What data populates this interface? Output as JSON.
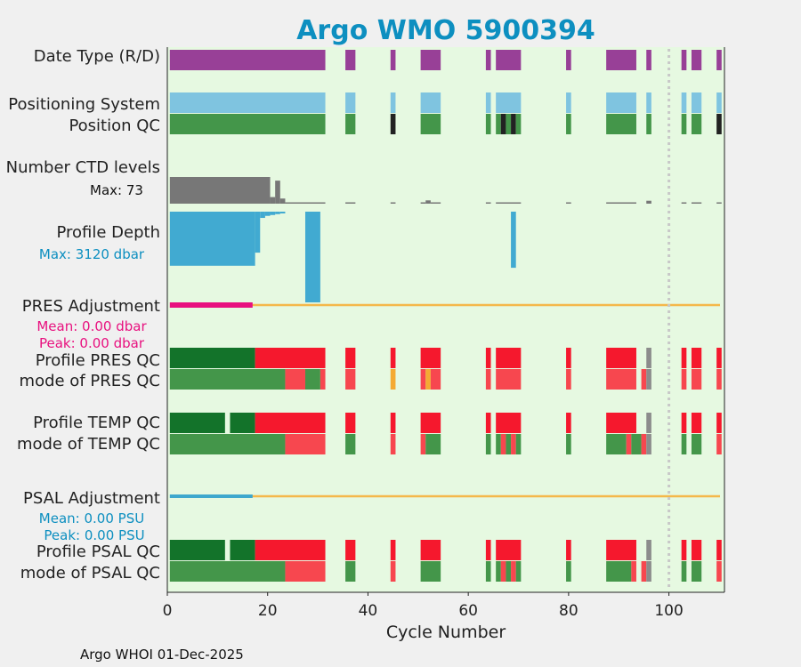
{
  "chart_data": {
    "type": "bar",
    "title": "Argo WMO 5900394",
    "xlabel": "Cycle Number",
    "xlim": [
      0,
      111
    ],
    "xticks": [
      "0",
      "20",
      "40",
      "60",
      "80",
      "100"
    ],
    "xtick_values": [
      0,
      20,
      40,
      60,
      80,
      100
    ],
    "footer": "Argo WHOI 01-Dec-2025",
    "colors": {
      "background": "#e6f9e1",
      "title": "#0d8fc0",
      "date_type": "#984097",
      "positioning": "#7fc4e0",
      "qc_good": "#44964a",
      "qc_dark_good": "#13732a",
      "qc_bad": "#f5182d",
      "qc_bad_light": "#f7474f",
      "qc_prob": "#f4aa33",
      "qc_black": "#222222",
      "qc_gray": "#8c8c8c",
      "ctd": "#777777",
      "depth": "#41aad1",
      "adj_line": "#f4b84a",
      "pres_adj": "#e8117f",
      "psal_adj": "#3ea8cd",
      "dotted": "#c8c8c8"
    },
    "reference_cycle": 100,
    "row_labels": {
      "date_type": "Date Type (R/D)",
      "positioning": "Positioning System",
      "position_qc": "Position QC",
      "ctd_levels": "Number CTD levels",
      "ctd_max": "Max: 73",
      "profile_depth": "Profile Depth",
      "depth_max": "Max: 3120 dbar",
      "pres_adj": "PRES Adjustment",
      "pres_mean": "Mean: 0.00 dbar",
      "pres_peak": "Peak: 0.00 dbar",
      "profile_pres_qc": "Profile PRES QC",
      "mode_pres_qc": "mode of PRES QC",
      "profile_temp_qc": "Profile TEMP QC",
      "mode_temp_qc": "mode of TEMP QC",
      "psal_adj": "PSAL Adjustment",
      "psal_mean": "Mean: 0.00 PSU",
      "psal_peak": "Peak: 0.00 PSU",
      "profile_psal_qc": "Profile PSAL QC",
      "mode_psal_qc": "mode of PSAL QC"
    },
    "ctd_max_levels": 73,
    "depth_max_dbar": 3120,
    "rows": {
      "date_type": [
        {
          "start": 0.5,
          "end": 31.5,
          "c": "date_type"
        },
        {
          "start": 35.5,
          "end": 37.5,
          "c": "date_type"
        },
        {
          "start": 44.5,
          "end": 45.5,
          "c": "date_type"
        },
        {
          "start": 50.5,
          "end": 54.5,
          "c": "date_type"
        },
        {
          "start": 63.5,
          "end": 64.5,
          "c": "date_type"
        },
        {
          "start": 65.5,
          "end": 70.5,
          "c": "date_type"
        },
        {
          "start": 79.5,
          "end": 80.5,
          "c": "date_type"
        },
        {
          "start": 87.5,
          "end": 93.5,
          "c": "date_type"
        },
        {
          "start": 95.5,
          "end": 96.5,
          "c": "date_type"
        },
        {
          "start": 102.5,
          "end": 103.5,
          "c": "date_type"
        },
        {
          "start": 104.5,
          "end": 106.5,
          "c": "date_type"
        },
        {
          "start": 109.5,
          "end": 110.5,
          "c": "date_type"
        }
      ],
      "positioning": [
        {
          "start": 0.5,
          "end": 31.5,
          "c": "positioning"
        },
        {
          "start": 35.5,
          "end": 37.5,
          "c": "positioning"
        },
        {
          "start": 44.5,
          "end": 45.5,
          "c": "positioning"
        },
        {
          "start": 50.5,
          "end": 54.5,
          "c": "positioning"
        },
        {
          "start": 63.5,
          "end": 64.5,
          "c": "positioning"
        },
        {
          "start": 65.5,
          "end": 70.5,
          "c": "positioning"
        },
        {
          "start": 79.5,
          "end": 80.5,
          "c": "positioning"
        },
        {
          "start": 87.5,
          "end": 93.5,
          "c": "positioning"
        },
        {
          "start": 95.5,
          "end": 96.5,
          "c": "positioning"
        },
        {
          "start": 102.5,
          "end": 103.5,
          "c": "positioning"
        },
        {
          "start": 104.5,
          "end": 106.5,
          "c": "positioning"
        },
        {
          "start": 109.5,
          "end": 110.5,
          "c": "positioning"
        }
      ],
      "position_qc": [
        {
          "start": 0.5,
          "end": 31.5,
          "c": "qc_good"
        },
        {
          "start": 35.5,
          "end": 37.5,
          "c": "qc_good"
        },
        {
          "start": 44.5,
          "end": 45.5,
          "c": "qc_black"
        },
        {
          "start": 50.5,
          "end": 54.5,
          "c": "qc_good"
        },
        {
          "start": 63.5,
          "end": 64.5,
          "c": "qc_good"
        },
        {
          "start": 65.5,
          "end": 66.5,
          "c": "qc_good"
        },
        {
          "start": 66.5,
          "end": 67.5,
          "c": "qc_black"
        },
        {
          "start": 67.5,
          "end": 68.5,
          "c": "qc_good"
        },
        {
          "start": 68.5,
          "end": 69.5,
          "c": "qc_black"
        },
        {
          "start": 69.5,
          "end": 70.5,
          "c": "qc_good"
        },
        {
          "start": 79.5,
          "end": 80.5,
          "c": "qc_good"
        },
        {
          "start": 87.5,
          "end": 93.5,
          "c": "qc_good"
        },
        {
          "start": 95.5,
          "end": 96.5,
          "c": "qc_good"
        },
        {
          "start": 102.5,
          "end": 103.5,
          "c": "qc_good"
        },
        {
          "start": 104.5,
          "end": 106.5,
          "c": "qc_good"
        },
        {
          "start": 109.5,
          "end": 110.5,
          "c": "qc_black"
        }
      ],
      "ctd_levels": [
        {
          "start": 0.5,
          "end": 20.5,
          "v": 73
        },
        {
          "start": 20.5,
          "end": 21.5,
          "v": 18
        },
        {
          "start": 21.5,
          "end": 22.5,
          "v": 63
        },
        {
          "start": 22.5,
          "end": 23.5,
          "v": 14
        },
        {
          "start": 23.5,
          "end": 31.5,
          "v": 3
        },
        {
          "start": 35.5,
          "end": 37.5,
          "v": 3
        },
        {
          "start": 44.5,
          "end": 45.5,
          "v": 3
        },
        {
          "start": 50.5,
          "end": 51.5,
          "v": 3
        },
        {
          "start": 51.5,
          "end": 52.5,
          "v": 9
        },
        {
          "start": 52.5,
          "end": 54.5,
          "v": 3
        },
        {
          "start": 63.5,
          "end": 64.5,
          "v": 3
        },
        {
          "start": 65.5,
          "end": 70.5,
          "v": 3
        },
        {
          "start": 79.5,
          "end": 80.5,
          "v": 3
        },
        {
          "start": 87.5,
          "end": 93.5,
          "v": 3
        },
        {
          "start": 95.5,
          "end": 96.5,
          "v": 8
        },
        {
          "start": 102.5,
          "end": 103.5,
          "v": 3
        },
        {
          "start": 104.5,
          "end": 106.5,
          "v": 3
        },
        {
          "start": 109.5,
          "end": 110.5,
          "v": 3
        }
      ],
      "profile_depth": [
        {
          "start": 0.5,
          "end": 17.5,
          "v": 1860
        },
        {
          "start": 17.5,
          "end": 18.5,
          "v": 1410
        },
        {
          "start": 18.5,
          "end": 19.5,
          "v": 215
        },
        {
          "start": 19.5,
          "end": 20.5,
          "v": 145
        },
        {
          "start": 20.5,
          "end": 21.5,
          "v": 115
        },
        {
          "start": 21.5,
          "end": 22.5,
          "v": 85
        },
        {
          "start": 22.5,
          "end": 23.5,
          "v": 40
        },
        {
          "start": 27.5,
          "end": 30.5,
          "v": 3120
        },
        {
          "start": 68.5,
          "end": 69.5,
          "v": 1930
        }
      ],
      "pres_adj": [
        {
          "start": 0.5,
          "end": 17.0,
          "c": "pres_adj"
        }
      ],
      "profile_pres_qc": [
        {
          "start": 0.5,
          "end": 17.5,
          "c": "qc_dark_good"
        },
        {
          "start": 17.5,
          "end": 31.5,
          "c": "qc_bad"
        },
        {
          "start": 35.5,
          "end": 37.5,
          "c": "qc_bad"
        },
        {
          "start": 44.5,
          "end": 45.5,
          "c": "qc_bad"
        },
        {
          "start": 50.5,
          "end": 54.5,
          "c": "qc_bad"
        },
        {
          "start": 63.5,
          "end": 64.5,
          "c": "qc_bad"
        },
        {
          "start": 65.5,
          "end": 70.5,
          "c": "qc_bad"
        },
        {
          "start": 79.5,
          "end": 80.5,
          "c": "qc_bad"
        },
        {
          "start": 87.5,
          "end": 93.5,
          "c": "qc_bad"
        },
        {
          "start": 95.5,
          "end": 96.5,
          "c": "qc_gray"
        },
        {
          "start": 102.5,
          "end": 103.5,
          "c": "qc_bad"
        },
        {
          "start": 104.5,
          "end": 106.5,
          "c": "qc_bad"
        },
        {
          "start": 109.5,
          "end": 110.5,
          "c": "qc_bad"
        }
      ],
      "mode_pres_qc": [
        {
          "start": 0.5,
          "end": 23.5,
          "c": "qc_good"
        },
        {
          "start": 23.5,
          "end": 27.5,
          "c": "qc_bad_light"
        },
        {
          "start": 27.5,
          "end": 30.5,
          "c": "qc_good"
        },
        {
          "start": 30.5,
          "end": 31.5,
          "c": "qc_bad_light"
        },
        {
          "start": 35.5,
          "end": 37.5,
          "c": "qc_bad_light"
        },
        {
          "start": 44.5,
          "end": 45.5,
          "c": "qc_prob"
        },
        {
          "start": 50.5,
          "end": 51.5,
          "c": "qc_bad_light"
        },
        {
          "start": 51.5,
          "end": 52.5,
          "c": "qc_prob"
        },
        {
          "start": 52.5,
          "end": 54.5,
          "c": "qc_bad_light"
        },
        {
          "start": 63.5,
          "end": 64.5,
          "c": "qc_bad_light"
        },
        {
          "start": 65.5,
          "end": 70.5,
          "c": "qc_bad_light"
        },
        {
          "start": 79.5,
          "end": 80.5,
          "c": "qc_bad_light"
        },
        {
          "start": 87.5,
          "end": 93.5,
          "c": "qc_bad_light"
        },
        {
          "start": 94.5,
          "end": 95.5,
          "c": "qc_bad_light"
        },
        {
          "start": 95.5,
          "end": 96.5,
          "c": "qc_gray"
        },
        {
          "start": 102.5,
          "end": 103.5,
          "c": "qc_bad_light"
        },
        {
          "start": 104.5,
          "end": 106.5,
          "c": "qc_bad_light"
        },
        {
          "start": 109.5,
          "end": 110.5,
          "c": "qc_bad_light"
        }
      ],
      "profile_temp_qc": [
        {
          "start": 0.5,
          "end": 11.5,
          "c": "qc_dark_good"
        },
        {
          "start": 12.5,
          "end": 17.5,
          "c": "qc_dark_good"
        },
        {
          "start": 17.5,
          "end": 31.5,
          "c": "qc_bad"
        },
        {
          "start": 35.5,
          "end": 37.5,
          "c": "qc_bad"
        },
        {
          "start": 44.5,
          "end": 45.5,
          "c": "qc_bad"
        },
        {
          "start": 50.5,
          "end": 54.5,
          "c": "qc_bad"
        },
        {
          "start": 63.5,
          "end": 64.5,
          "c": "qc_bad"
        },
        {
          "start": 65.5,
          "end": 70.5,
          "c": "qc_bad"
        },
        {
          "start": 79.5,
          "end": 80.5,
          "c": "qc_bad"
        },
        {
          "start": 87.5,
          "end": 93.5,
          "c": "qc_bad"
        },
        {
          "start": 95.5,
          "end": 96.5,
          "c": "qc_gray"
        },
        {
          "start": 102.5,
          "end": 103.5,
          "c": "qc_bad"
        },
        {
          "start": 104.5,
          "end": 106.5,
          "c": "qc_bad"
        },
        {
          "start": 109.5,
          "end": 110.5,
          "c": "qc_bad"
        }
      ],
      "mode_temp_qc": [
        {
          "start": 0.5,
          "end": 23.5,
          "c": "qc_good"
        },
        {
          "start": 23.5,
          "end": 31.5,
          "c": "qc_bad_light"
        },
        {
          "start": 35.5,
          "end": 37.5,
          "c": "qc_good"
        },
        {
          "start": 44.5,
          "end": 45.5,
          "c": "qc_bad_light"
        },
        {
          "start": 50.5,
          "end": 51.5,
          "c": "qc_bad_light"
        },
        {
          "start": 51.5,
          "end": 54.5,
          "c": "qc_good"
        },
        {
          "start": 63.5,
          "end": 64.5,
          "c": "qc_good"
        },
        {
          "start": 65.5,
          "end": 66.5,
          "c": "qc_good"
        },
        {
          "start": 66.5,
          "end": 67.5,
          "c": "qc_bad_light"
        },
        {
          "start": 67.5,
          "end": 68.5,
          "c": "qc_good"
        },
        {
          "start": 68.5,
          "end": 69.5,
          "c": "qc_bad_light"
        },
        {
          "start": 69.5,
          "end": 70.5,
          "c": "qc_good"
        },
        {
          "start": 79.5,
          "end": 80.5,
          "c": "qc_good"
        },
        {
          "start": 87.5,
          "end": 91.5,
          "c": "qc_good"
        },
        {
          "start": 91.5,
          "end": 92.5,
          "c": "qc_bad_light"
        },
        {
          "start": 92.5,
          "end": 94.5,
          "c": "qc_good"
        },
        {
          "start": 94.5,
          "end": 95.5,
          "c": "qc_bad_light"
        },
        {
          "start": 95.5,
          "end": 96.5,
          "c": "qc_gray"
        },
        {
          "start": 102.5,
          "end": 103.5,
          "c": "qc_good"
        },
        {
          "start": 104.5,
          "end": 106.5,
          "c": "qc_good"
        },
        {
          "start": 109.5,
          "end": 110.5,
          "c": "qc_bad_light"
        }
      ],
      "psal_adj": [
        {
          "start": 0.5,
          "end": 17.0,
          "c": "psal_adj"
        }
      ],
      "profile_psal_qc": [
        {
          "start": 0.5,
          "end": 11.5,
          "c": "qc_dark_good"
        },
        {
          "start": 12.5,
          "end": 17.5,
          "c": "qc_dark_good"
        },
        {
          "start": 17.5,
          "end": 31.5,
          "c": "qc_bad"
        },
        {
          "start": 35.5,
          "end": 37.5,
          "c": "qc_bad"
        },
        {
          "start": 44.5,
          "end": 45.5,
          "c": "qc_bad"
        },
        {
          "start": 50.5,
          "end": 54.5,
          "c": "qc_bad"
        },
        {
          "start": 63.5,
          "end": 64.5,
          "c": "qc_bad"
        },
        {
          "start": 65.5,
          "end": 70.5,
          "c": "qc_bad"
        },
        {
          "start": 79.5,
          "end": 80.5,
          "c": "qc_bad"
        },
        {
          "start": 87.5,
          "end": 93.5,
          "c": "qc_bad"
        },
        {
          "start": 95.5,
          "end": 96.5,
          "c": "qc_gray"
        },
        {
          "start": 102.5,
          "end": 103.5,
          "c": "qc_bad"
        },
        {
          "start": 104.5,
          "end": 106.5,
          "c": "qc_bad"
        },
        {
          "start": 109.5,
          "end": 110.5,
          "c": "qc_bad"
        }
      ],
      "mode_psal_qc": [
        {
          "start": 0.5,
          "end": 23.5,
          "c": "qc_good"
        },
        {
          "start": 23.5,
          "end": 31.5,
          "c": "qc_bad_light"
        },
        {
          "start": 35.5,
          "end": 37.5,
          "c": "qc_good"
        },
        {
          "start": 44.5,
          "end": 45.5,
          "c": "qc_bad_light"
        },
        {
          "start": 50.5,
          "end": 54.5,
          "c": "qc_good"
        },
        {
          "start": 63.5,
          "end": 64.5,
          "c": "qc_good"
        },
        {
          "start": 65.5,
          "end": 66.5,
          "c": "qc_good"
        },
        {
          "start": 66.5,
          "end": 67.5,
          "c": "qc_bad_light"
        },
        {
          "start": 67.5,
          "end": 68.5,
          "c": "qc_good"
        },
        {
          "start": 68.5,
          "end": 69.5,
          "c": "qc_bad_light"
        },
        {
          "start": 69.5,
          "end": 70.5,
          "c": "qc_good"
        },
        {
          "start": 79.5,
          "end": 80.5,
          "c": "qc_good"
        },
        {
          "start": 87.5,
          "end": 92.5,
          "c": "qc_good"
        },
        {
          "start": 92.5,
          "end": 93.5,
          "c": "qc_bad_light"
        },
        {
          "start": 94.5,
          "end": 95.5,
          "c": "qc_bad_light"
        },
        {
          "start": 95.5,
          "end": 96.5,
          "c": "qc_gray"
        },
        {
          "start": 102.5,
          "end": 103.5,
          "c": "qc_good"
        },
        {
          "start": 104.5,
          "end": 106.5,
          "c": "qc_good"
        },
        {
          "start": 109.5,
          "end": 110.5,
          "c": "qc_bad_light"
        }
      ]
    }
  }
}
